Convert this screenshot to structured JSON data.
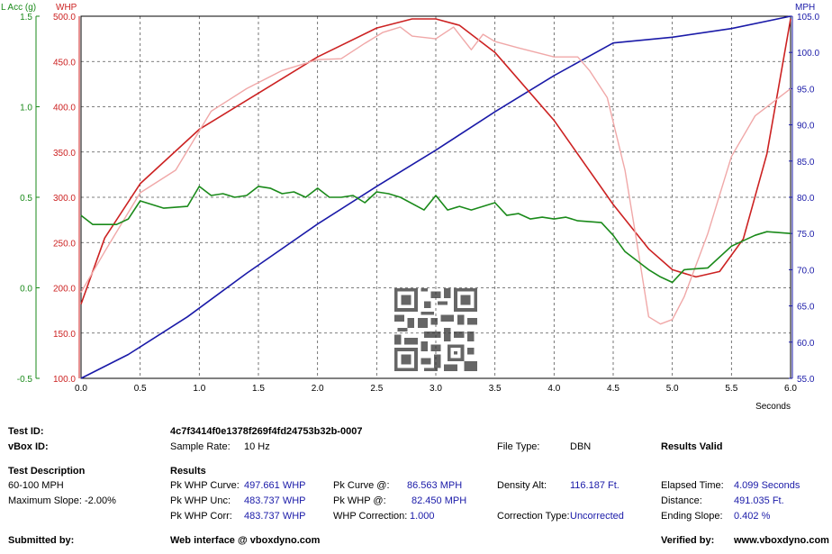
{
  "chart_data": {
    "type": "line",
    "xlabel": "Seconds",
    "xlim": [
      0,
      6
    ],
    "x_ticks": [
      "0.0",
      "0.5",
      "1.0",
      "1.5",
      "2.0",
      "2.5",
      "3.0",
      "3.5",
      "4.0",
      "4.5",
      "5.0",
      "5.5",
      "6.0"
    ],
    "axes": {
      "lacc": {
        "label": "L Acc (g)",
        "range": [
          -0.5,
          1.5
        ],
        "ticks": [
          "-0.5",
          "0.0",
          "0.5",
          "1.0",
          "1.5"
        ],
        "color": "#1a8a1a"
      },
      "whp": {
        "label": "WHP",
        "range": [
          100,
          500
        ],
        "ticks": [
          "100.0",
          "150.0",
          "200.0",
          "250.0",
          "300.0",
          "350.0",
          "400.0",
          "450.0",
          "500.0"
        ],
        "color": "#cc2222"
      },
      "mph": {
        "label": "MPH",
        "range": [
          55,
          105
        ],
        "ticks": [
          "55.0",
          "60.0",
          "65.0",
          "70.0",
          "75.0",
          "80.0",
          "85.0",
          "90.0",
          "95.0",
          "100.0",
          "105.0"
        ],
        "color": "#1a1aa8"
      }
    },
    "grid": true,
    "series": [
      {
        "id": "mph",
        "axis": "mph",
        "color": "#1a1aa8",
        "x": [
          0,
          0.4,
          0.9,
          1.4,
          2.0,
          2.5,
          3.0,
          3.5,
          4.0,
          4.5,
          5.0,
          5.5,
          6.0
        ],
        "y": [
          55.0,
          58.3,
          63.5,
          69.5,
          76.3,
          81.5,
          86.5,
          91.8,
          96.8,
          101.3,
          102.1,
          103.3,
          105.0
        ]
      },
      {
        "id": "whp_curve",
        "axis": "whp",
        "color": "#cc2222",
        "x": [
          0,
          0.2,
          0.5,
          1.0,
          1.5,
          2.0,
          2.5,
          2.8,
          3.0,
          3.2,
          3.5,
          4.0,
          4.5,
          4.8,
          5.0,
          5.2,
          5.4,
          5.6,
          5.8,
          6.0
        ],
        "y": [
          182,
          255,
          315,
          375,
          415,
          455,
          487,
          497,
          497,
          490,
          460,
          385,
          292,
          243,
          220,
          212,
          218,
          254,
          348,
          497
        ]
      },
      {
        "id": "whp_raw",
        "axis": "whp",
        "color": "#f0a8a8",
        "x": [
          0,
          0.2,
          0.5,
          0.8,
          1.1,
          1.4,
          1.7,
          2.0,
          2.2,
          2.4,
          2.55,
          2.7,
          2.8,
          3.0,
          3.15,
          3.3,
          3.4,
          3.5,
          3.7,
          4.0,
          4.2,
          4.3,
          4.45,
          4.6,
          4.7,
          4.8,
          4.9,
          5.0,
          5.1,
          5.3,
          5.5,
          5.7,
          6.0
        ],
        "y": [
          195,
          240,
          305,
          330,
          395,
          420,
          440,
          452,
          453,
          470,
          482,
          488,
          478,
          475,
          488,
          463,
          480,
          472,
          465,
          455,
          455,
          440,
          410,
          330,
          250,
          168,
          160,
          165,
          190,
          260,
          345,
          390,
          420
        ]
      },
      {
        "id": "lacc",
        "axis": "lacc",
        "color": "#1a8a1a",
        "x": [
          0,
          0.1,
          0.3,
          0.4,
          0.5,
          0.7,
          0.9,
          1.0,
          1.1,
          1.2,
          1.3,
          1.4,
          1.5,
          1.6,
          1.7,
          1.8,
          1.9,
          2.0,
          2.1,
          2.2,
          2.3,
          2.4,
          2.5,
          2.6,
          2.7,
          2.9,
          3.0,
          3.1,
          3.2,
          3.3,
          3.5,
          3.6,
          3.7,
          3.8,
          3.9,
          4.0,
          4.1,
          4.2,
          4.4,
          4.5,
          4.6,
          4.8,
          4.9,
          5.0,
          5.1,
          5.3,
          5.5,
          5.7,
          5.8,
          6.0
        ],
        "y": [
          0.4,
          0.35,
          0.35,
          0.38,
          0.48,
          0.44,
          0.45,
          0.56,
          0.51,
          0.52,
          0.5,
          0.51,
          0.56,
          0.55,
          0.52,
          0.53,
          0.5,
          0.55,
          0.5,
          0.5,
          0.51,
          0.47,
          0.53,
          0.52,
          0.5,
          0.43,
          0.51,
          0.43,
          0.45,
          0.43,
          0.47,
          0.4,
          0.41,
          0.38,
          0.39,
          0.38,
          0.39,
          0.37,
          0.36,
          0.29,
          0.2,
          0.1,
          0.06,
          0.03,
          0.1,
          0.11,
          0.23,
          0.29,
          0.31,
          0.3
        ]
      }
    ]
  },
  "info": {
    "test_id_label": "Test ID:",
    "test_id_value": "4c7f3414f0e1378f269f4fd24753b32b-0007",
    "vbox_id_label": "vBox ID:",
    "sample_rate_label": "Sample Rate:",
    "sample_rate_value": "10 Hz",
    "file_type_label": "File Type:",
    "file_type_value": "DBN",
    "results_valid": "Results Valid",
    "test_description_label": "Test Description",
    "test_description_value": "60-100 MPH",
    "max_slope_label": "Maximum Slope:",
    "max_slope_value": "-2.00%",
    "results_label": "Results",
    "pk_whp_curve_label": "Pk WHP Curve:",
    "pk_whp_curve_value": "497.661 WHP",
    "pk_whp_unc_label": "Pk WHP Unc:",
    "pk_whp_unc_value": "483.737 WHP",
    "pk_whp_corr_label": "Pk WHP Corr:",
    "pk_whp_corr_value": "483.737 WHP",
    "pk_curve_at_label": "Pk Curve @:",
    "pk_curve_at_value": "86.563 MPH",
    "pk_whp_at_label": "Pk WHP @:",
    "pk_whp_at_value": "82.450 MPH",
    "whp_correction_label": "WHP Correction:",
    "whp_correction_value": "1.000",
    "density_alt_label": "Density Alt:",
    "density_alt_value": "116.187 Ft.",
    "correction_type_label": "Correction Type:",
    "correction_type_value": "Uncorrected",
    "elapsed_time_label": "Elapsed Time:",
    "elapsed_time_value": "4.099 Seconds",
    "distance_label": "Distance:",
    "distance_value": "491.035 Ft.",
    "ending_slope_label": "Ending Slope:",
    "ending_slope_value": "0.402 %",
    "submitted_by_label": "Submitted by:",
    "web_interface_label": "Web interface @ vboxdyno.com",
    "verified_by_label": "Verified by:",
    "verified_by_value": "www.vboxdyno.com"
  }
}
